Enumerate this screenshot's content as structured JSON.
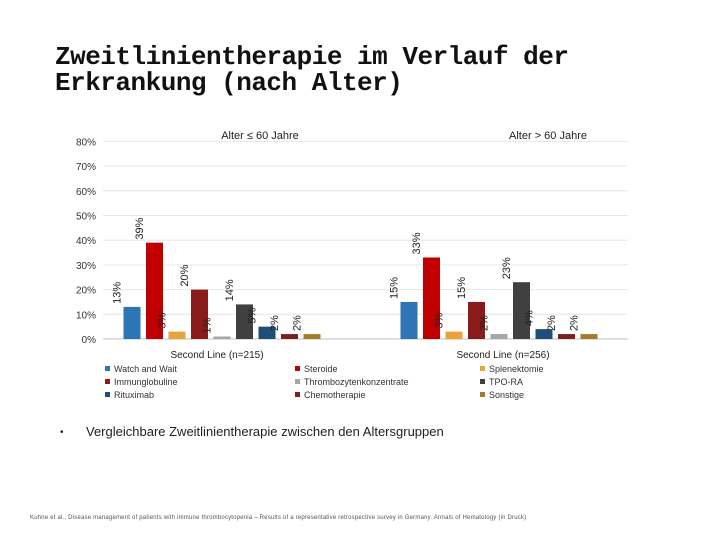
{
  "title": {
    "line1": "Zweitlinientherapie im Verlauf der",
    "line2": "Erkrankung (nach Alter)"
  },
  "chart_data": {
    "type": "bar",
    "y_ticks": [
      "0%",
      "10%",
      "20%",
      "30%",
      "40%",
      "50%",
      "60%",
      "70%",
      "80%"
    ],
    "ylim": [
      0,
      80
    ],
    "grid": true,
    "groups": [
      {
        "title": "Alter ≤ 60 Jahre",
        "xlabel": "Second Line (n=215)",
        "values": [
          13,
          39,
          3,
          20,
          1,
          14,
          5,
          2,
          2
        ],
        "labels": [
          "13%",
          "39%",
          "3%",
          "20%",
          "1%",
          "14%",
          "5%",
          "2%",
          "2%"
        ]
      },
      {
        "title": "Alter > 60 Jahre",
        "xlabel": "Second Line (n=256)",
        "values": [
          15,
          33,
          3,
          15,
          2,
          23,
          4,
          2,
          2
        ],
        "labels": [
          "15%",
          "33%",
          "3%",
          "15%",
          "2%",
          "23%",
          "4%",
          "2%",
          "2%"
        ]
      }
    ],
    "series": [
      {
        "name": "Watch and Wait",
        "color": "#2e75b6"
      },
      {
        "name": "Steroide",
        "color": "#c00000"
      },
      {
        "name": "Splenektomie",
        "color": "#e8a33a"
      },
      {
        "name": "Immunglobuline",
        "color": "#8b1a1a"
      },
      {
        "name": "Thrombozytenkonzentrate",
        "color": "#a6a6a6"
      },
      {
        "name": "TPO-RA",
        "color": "#404040"
      },
      {
        "name": "Rituximab",
        "color": "#1f4e79"
      },
      {
        "name": "Chemotherapie",
        "color": "#7b2020"
      },
      {
        "name": "Sonstige",
        "color": "#a67c2c"
      }
    ]
  },
  "bullet": "Vergleichbare Zweitlinientherapie zwischen den Altersgruppen",
  "source": "Kuhne et al., Disease management of patients with immune thrombocytopenia – Results of a representative retrospective survey in Germany. Annals of Hematology (in Druck)"
}
